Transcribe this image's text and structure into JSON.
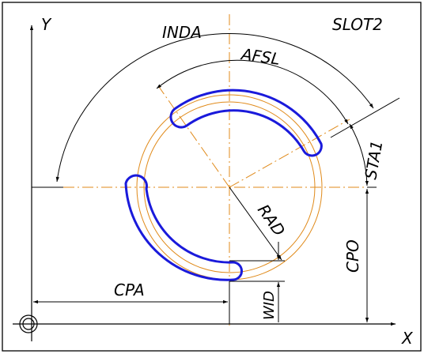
{
  "title": "SLOT2",
  "axes": {
    "x_label": "X",
    "y_label": "Y"
  },
  "dimensions": {
    "inda": "INDA",
    "afsl": "AFSL",
    "sta1": "STA1",
    "rad": "RAD",
    "cpo": "CPO",
    "cpa": "CPA",
    "wid": "WID"
  },
  "colors": {
    "slot": "#1a1adb",
    "construction": "#e08a1a",
    "dimension": "#000000",
    "frame": "#000000"
  }
}
